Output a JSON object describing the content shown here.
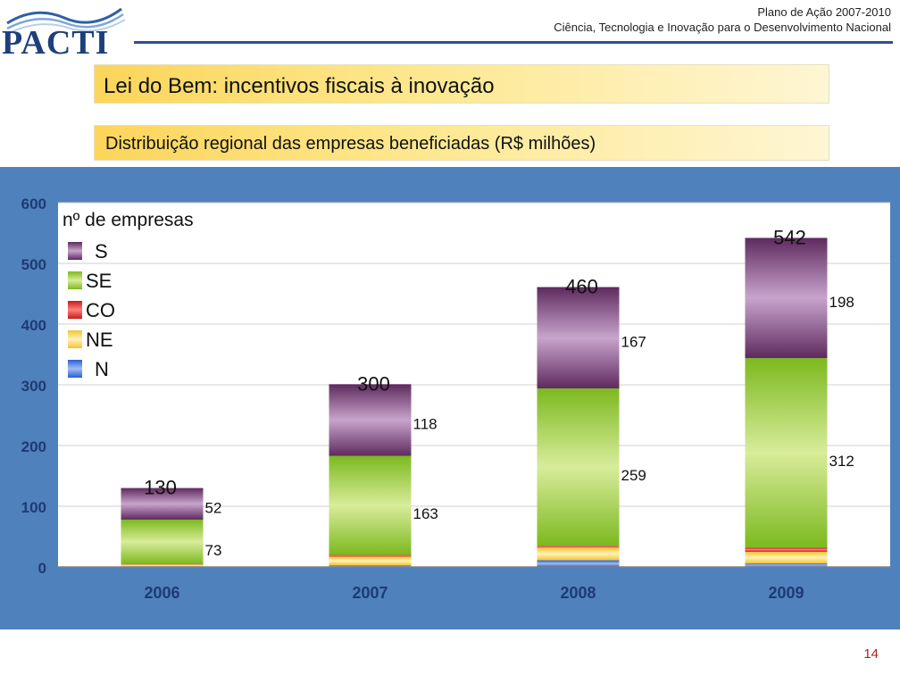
{
  "header": {
    "logo_text": "PACTI",
    "title_line1": "Plano de Ação 2007-2010",
    "title_line2": "Ciência, Tecnologia e Inovação para o Desenvolvimento Nacional"
  },
  "banners": {
    "title": "Lei do Bem: incentivos fiscais à inovação",
    "subtitle": "Distribuição regional das empresas beneficiadas (R$ milhões)"
  },
  "page_number": "14",
  "colors": {
    "panel": "#4f81bd",
    "S": "#8a5a90",
    "SE": "#9acd32",
    "CO": "#e23030",
    "NE": "#ffd966",
    "N": "#4a7be0"
  },
  "chart_data": {
    "type": "bar",
    "stacked": true,
    "categories": [
      "2006",
      "2007",
      "2008",
      "2009"
    ],
    "ylim": [
      0,
      600
    ],
    "yticks": [
      "0",
      "100",
      "200",
      "300",
      "400",
      "500",
      "600"
    ],
    "legend_title": "nº de empresas",
    "legend_position": "top-left",
    "grid": true,
    "series": [
      {
        "name": "N",
        "values": [
          1,
          3,
          11,
          6
        ]
      },
      {
        "name": "NE",
        "values": [
          3,
          14,
          21,
          19
        ]
      },
      {
        "name": "CO",
        "values": [
          1,
          3,
          3,
          7
        ]
      },
      {
        "name": "SE",
        "values": [
          73,
          163,
          259,
          312
        ]
      },
      {
        "name": "S",
        "values": [
          52,
          118,
          167,
          198
        ]
      }
    ],
    "legend_order": [
      "S",
      "SE",
      "CO",
      "NE",
      "N"
    ],
    "totals": [
      "130",
      "300",
      "460",
      "542"
    ],
    "se_labels": [
      "73",
      "163",
      "259",
      "312"
    ],
    "s_labels": [
      "52",
      "118",
      "167",
      "198"
    ]
  }
}
